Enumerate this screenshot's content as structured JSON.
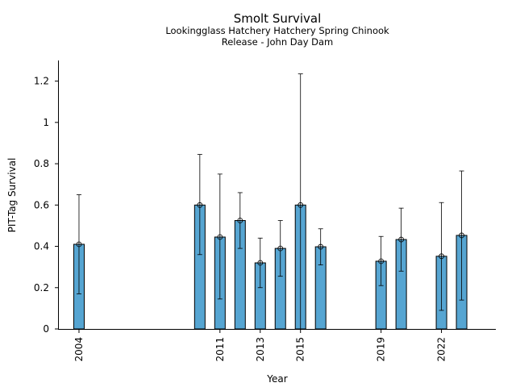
{
  "chart_data": {
    "type": "bar",
    "title": "Smolt Survival",
    "subtitle_lines": [
      "Lookingglass Hatchery Hatchery Spring Chinook",
      "Release - John Day Dam"
    ],
    "xlabel": "Year",
    "ylabel": "PIT-Tag Survival",
    "ylim": [
      0,
      1.3
    ],
    "y_ticks": [
      0,
      0.2,
      0.4,
      0.6,
      0.8,
      1,
      1.2
    ],
    "y_tick_labels": [
      "0",
      "0.2",
      "0.4",
      "0.6",
      "0.8",
      "1",
      "1.2"
    ],
    "x_ticks": [
      2004,
      2011,
      2013,
      2015,
      2019,
      2022
    ],
    "x_tick_labels": [
      "2004",
      "2011",
      "2013",
      "2015",
      "2019",
      "2022"
    ],
    "xlim": [
      2003,
      2024.7
    ],
    "bar_color": "#56a5d2",
    "grid": false,
    "series": [
      {
        "x": [
          2004,
          2010,
          2011,
          2012,
          2013,
          2014,
          2015,
          2016,
          2019,
          2020,
          2022,
          2023
        ],
        "values": [
          0.41,
          0.6,
          0.445,
          0.525,
          0.32,
          0.39,
          0.6,
          0.398,
          0.328,
          0.433,
          0.352,
          0.453
        ],
        "lower": [
          0.17,
          0.36,
          0.145,
          0.39,
          0.2,
          0.255,
          0.0,
          0.31,
          0.21,
          0.28,
          0.09,
          0.14
        ],
        "upper": [
          0.65,
          0.845,
          0.75,
          0.66,
          0.44,
          0.525,
          1.235,
          0.485,
          0.448,
          0.585,
          0.612,
          0.765
        ]
      }
    ]
  }
}
